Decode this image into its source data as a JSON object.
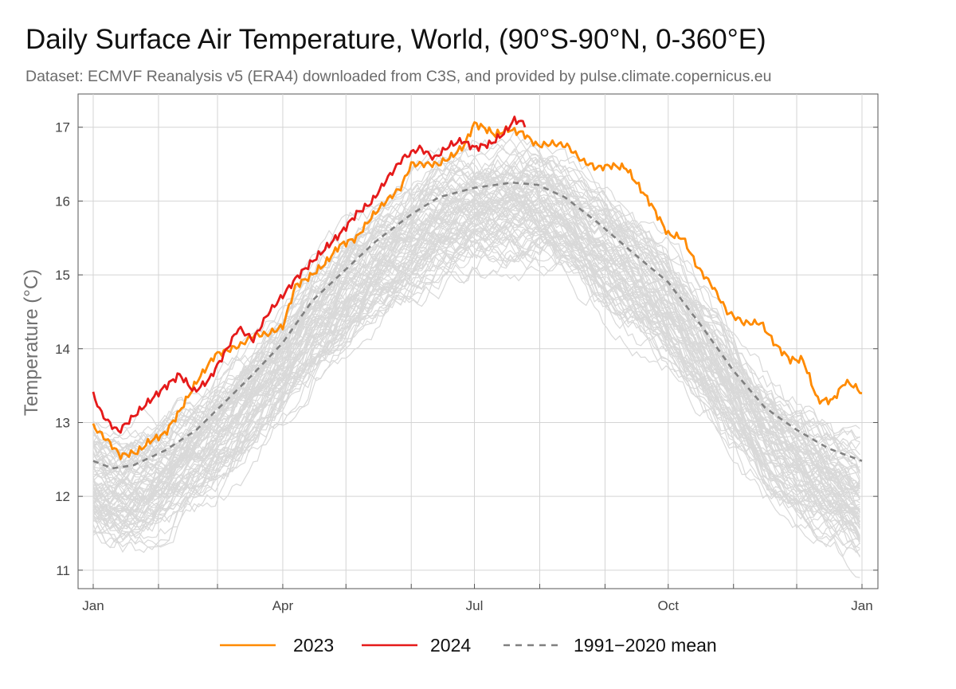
{
  "header": {
    "title": "Daily Surface Air Temperature, World, (90°S-90°N, 0-360°E)",
    "subtitle": "Dataset: ECMVF Reanalysis v5 (ERA4) downloaded from C3S, and provided by pulse.climate.copernicus.eu"
  },
  "chart_data": {
    "type": "line",
    "title": "Daily Surface Air Temperature, World, (90°S-90°N, 0-360°E)",
    "subtitle": "Dataset: ECMVF Reanalysis v5 (ERA4) downloaded from C3S, and provided by pulse.climate.copernicus.eu",
    "ylabel": "Temperature (°C)",
    "xlabel": "",
    "xlim": [
      1,
      366
    ],
    "ylim": [
      10.75,
      17.45
    ],
    "x_ticks": [
      {
        "day": 1,
        "label": "Jan"
      },
      {
        "day": 91,
        "label": "Apr"
      },
      {
        "day": 182,
        "label": "Jul"
      },
      {
        "day": 274,
        "label": "Oct"
      },
      {
        "day": 366,
        "label": "Jan"
      }
    ],
    "y_ticks": [
      11,
      12,
      13,
      14,
      15,
      16,
      17
    ],
    "grid": true,
    "legend_position": "bottom",
    "series": [
      {
        "name": "2023",
        "color": "#ff8a00",
        "x": [
          1,
          8,
          14,
          22,
          28,
          35,
          42,
          50,
          59,
          65,
          71,
          77,
          84,
          91,
          97,
          104,
          111,
          118,
          126,
          133,
          140,
          147,
          152,
          158,
          165,
          172,
          177,
          182,
          186,
          192,
          198,
          205,
          212,
          219,
          226,
          233,
          240,
          247,
          254,
          260,
          266,
          274,
          281,
          288,
          295,
          302,
          310,
          318,
          325,
          332,
          338,
          345,
          352,
          358,
          362,
          366
        ],
        "y": [
          12.95,
          12.75,
          12.55,
          12.6,
          12.75,
          12.85,
          13.15,
          13.55,
          13.92,
          13.98,
          14.05,
          14.18,
          14.2,
          14.3,
          14.85,
          14.98,
          15.15,
          15.4,
          15.5,
          15.78,
          16.0,
          16.18,
          16.5,
          16.5,
          16.5,
          16.62,
          16.75,
          17.05,
          17.0,
          16.9,
          16.97,
          16.92,
          16.75,
          16.78,
          16.75,
          16.55,
          16.45,
          16.48,
          16.45,
          16.2,
          15.95,
          15.55,
          15.5,
          15.1,
          14.85,
          14.5,
          14.35,
          14.35,
          14.05,
          13.85,
          13.85,
          13.3,
          13.3,
          13.55,
          13.5,
          13.4
        ]
      },
      {
        "name": "2024",
        "color": "#e51a1a",
        "x": [
          1,
          5,
          9,
          13,
          20,
          28,
          35,
          42,
          49,
          56,
          63,
          70,
          77,
          84,
          91,
          98,
          105,
          112,
          119,
          126,
          133,
          140,
          148,
          156,
          163,
          170,
          176,
          182,
          190,
          196,
          201,
          206
        ],
        "y": [
          13.38,
          13.12,
          12.98,
          12.88,
          13.08,
          13.3,
          13.48,
          13.65,
          13.42,
          13.58,
          13.92,
          14.28,
          14.12,
          14.48,
          14.72,
          14.98,
          15.18,
          15.38,
          15.58,
          15.83,
          15.98,
          16.28,
          16.58,
          16.72,
          16.58,
          16.75,
          16.82,
          16.72,
          16.78,
          16.92,
          17.1,
          17.05
        ]
      },
      {
        "name": "1991−2020 mean",
        "color": "#808080",
        "dashed": true,
        "x": [
          1,
          10,
          20,
          35,
          50,
          60,
          75,
          91,
          105,
          120,
          135,
          152,
          165,
          182,
          200,
          212,
          225,
          240,
          258,
          274,
          290,
          305,
          320,
          335,
          350,
          366
        ],
        "y": [
          12.48,
          12.38,
          12.42,
          12.62,
          12.9,
          13.18,
          13.6,
          14.08,
          14.65,
          15.05,
          15.45,
          15.82,
          16.05,
          16.18,
          16.25,
          16.22,
          16.05,
          15.72,
          15.28,
          14.9,
          14.3,
          13.7,
          13.2,
          12.9,
          12.65,
          12.48
        ]
      }
    ],
    "background_years": {
      "color": "#d9d9d9",
      "description_count": 84
    }
  },
  "legend": {
    "items": [
      {
        "label": "2023",
        "color": "#ff8a00",
        "dashed": false
      },
      {
        "label": "2024",
        "color": "#e51a1a",
        "dashed": false
      },
      {
        "label": "1991−2020 mean",
        "color": "#808080",
        "dashed": true
      }
    ]
  }
}
